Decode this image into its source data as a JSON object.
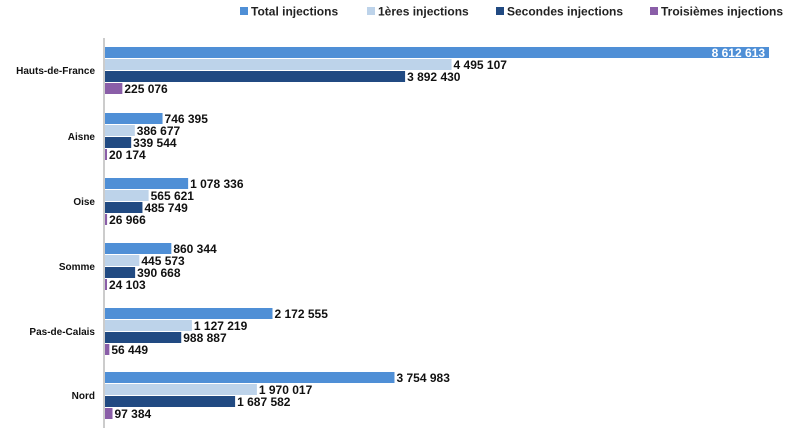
{
  "chart_data": {
    "type": "bar",
    "orientation": "horizontal",
    "categories": [
      "Hauts-de-France",
      "Aisne",
      "Oise",
      "Somme",
      "Pas-de-Calais",
      "Nord"
    ],
    "series": [
      {
        "name": "Total injections",
        "color": "#4f8fd6",
        "values": [
          8612613,
          746395,
          1078336,
          860344,
          2172555,
          3754983
        ],
        "labels": [
          "8 612 613",
          "746 395",
          "1 078 336",
          "860 344",
          "2 172 555",
          "3 754 983"
        ]
      },
      {
        "name": "1ères injections",
        "color": "#bdd3ea",
        "values": [
          4495107,
          386677,
          565621,
          445573,
          1127219,
          1970017
        ],
        "labels": [
          "4 495 107",
          "386 677",
          "565 621",
          "445 573",
          "1 127 219",
          "1 970 017"
        ]
      },
      {
        "name": "Secondes injections",
        "color": "#214a82",
        "values": [
          3892430,
          339544,
          485749,
          390668,
          988887,
          1687582
        ],
        "labels": [
          "3 892 430",
          "339 544",
          "485 749",
          "390 668",
          "988 887",
          "1 687 582"
        ]
      },
      {
        "name": "Troisièmes injections",
        "color": "#8a5ea8",
        "values": [
          225076,
          20174,
          26966,
          24103,
          56449,
          97384
        ],
        "labels": [
          "225 076",
          "20 174",
          "26 966",
          "24 103",
          "56 449",
          "97 384"
        ]
      }
    ],
    "xlim": [
      0,
      8612613
    ],
    "legend_position": "top-right",
    "grid": false,
    "axis_color": "#9a9a9a"
  }
}
